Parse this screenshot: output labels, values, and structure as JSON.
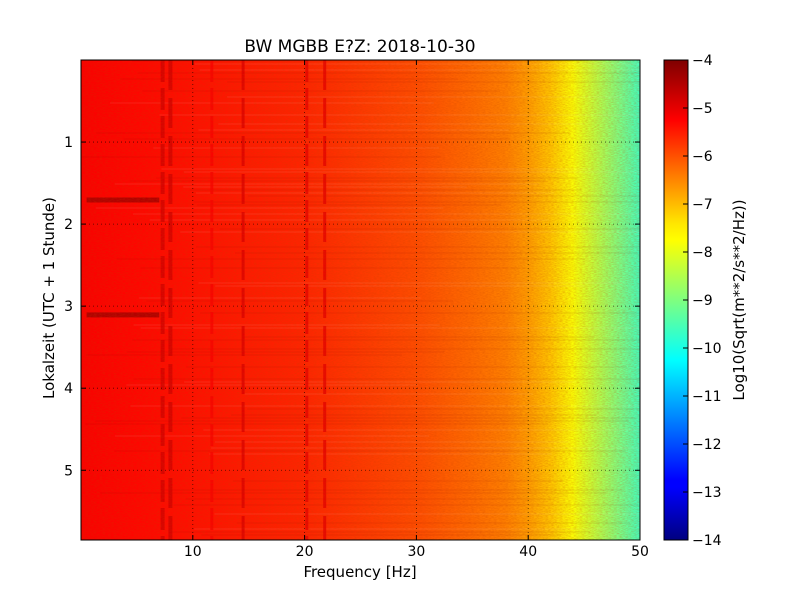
{
  "chart_data": {
    "type": "heatmap",
    "title": "BW MGBB E?Z: 2018-10-30",
    "xlabel": "Frequency [Hz]",
    "ylabel": "Lokalzeit (UTC + 1 Stunde)",
    "xlim": [
      0,
      50
    ],
    "ylim": [
      5.85,
      0
    ],
    "x_ticks": [
      10,
      20,
      30,
      40,
      50
    ],
    "y_ticks": [
      1,
      2,
      3,
      4,
      5
    ],
    "grid": true,
    "colormap": "jet",
    "colorbar": {
      "label": "Log10(Sqrt(m**2/s**2/Hz))",
      "range": [
        -14,
        -4
      ],
      "ticks": [
        -4,
        -5,
        -6,
        -7,
        -8,
        -9,
        -10,
        -11,
        -12,
        -13,
        -14
      ]
    },
    "frequency_profile_hz": [
      0,
      5,
      10,
      15,
      20,
      25,
      30,
      35,
      38,
      40,
      42,
      44,
      46,
      48,
      50
    ],
    "frequency_profile_log10": [
      -5.2,
      -5.3,
      -5.4,
      -5.5,
      -5.6,
      -5.8,
      -6.0,
      -6.3,
      -6.5,
      -6.8,
      -7.2,
      -7.8,
      -8.4,
      -9.0,
      -9.6
    ],
    "spectral_lines_hz": [
      7.3,
      8.0,
      11.7,
      14.5,
      20.2,
      21.8
    ],
    "spectral_lines_level_log10": [
      -4.8,
      -4.8,
      -5.2,
      -4.9,
      -5.0,
      -5.0
    ],
    "transients": [
      {
        "time_h": 1.7,
        "freq_range_hz": [
          0.5,
          7.0
        ],
        "level_log10": -4.4
      },
      {
        "time_h": 3.1,
        "freq_range_hz": [
          0.5,
          7.0
        ],
        "level_log10": -4.4
      }
    ]
  }
}
